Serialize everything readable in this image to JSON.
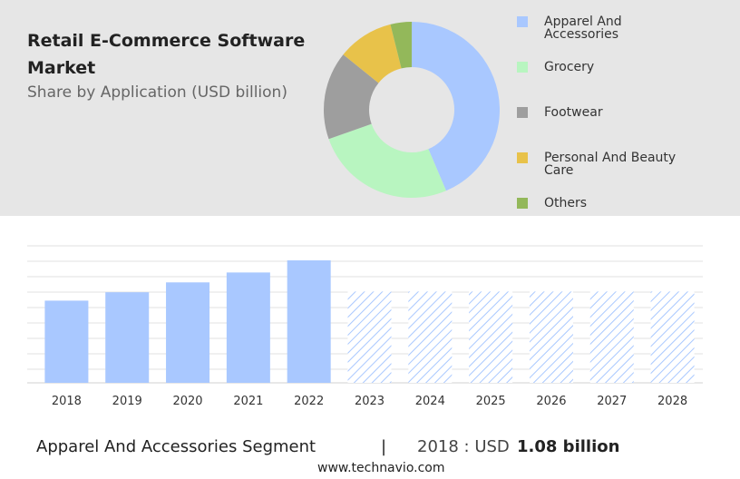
{
  "header": {
    "title": "Retail E-Commerce Software Market",
    "subtitle": "Share by Application (USD billion)"
  },
  "chart_data": [
    {
      "type": "pie",
      "donut": true,
      "categories": [
        "Apparel And Accessories",
        "Grocery",
        "Footwear",
        "Personal And Beauty Care",
        "Others"
      ],
      "values": [
        43.6,
        26,
        16.2,
        10.3,
        3.9
      ],
      "colors": [
        "#a9c8ff",
        "#b8f5c0",
        "#9e9e9e",
        "#e8c24a",
        "#93b85a"
      ]
    },
    {
      "type": "bar",
      "categories": [
        "2018",
        "2019",
        "2020",
        "2021",
        "2022",
        "2023",
        "2024",
        "2025",
        "2026",
        "2027",
        "2028"
      ],
      "values": [
        1.08,
        1.19,
        1.32,
        1.45,
        1.61,
        1.2,
        1.2,
        1.2,
        1.2,
        1.2,
        1.2
      ],
      "patterns": [
        "solid",
        "solid",
        "solid",
        "solid",
        "solid",
        "hatched",
        "hatched",
        "hatched",
        "hatched",
        "hatched",
        "hatched"
      ],
      "color": "#a9c8ff",
      "ylim": [
        0,
        1.8
      ]
    }
  ],
  "footer": {
    "segment": "Apparel And Accessories Segment",
    "separator": "|",
    "year_label": "2018 : USD",
    "value_label": "1.08 billion",
    "source": "www.technavio.com"
  }
}
